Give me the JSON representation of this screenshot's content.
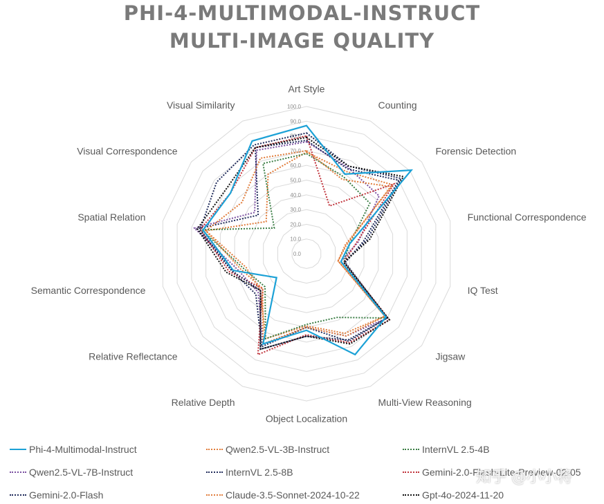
{
  "title": {
    "line1": "PHI-4-MULTIMODAL-INSTRUCT",
    "line2": "MULTI-IMAGE QUALITY"
  },
  "chart_data": {
    "type": "radar",
    "title": "PHI-4-MULTIMODAL-INSTRUCT MULTI-IMAGE QUALITY",
    "categories": [
      "Art Style",
      "Counting",
      "Forensic Detection",
      "Functional Correspondence",
      "IQ Test",
      "Jigsaw",
      "Multi-View Reasoning",
      "Object Localization",
      "Relative Depth",
      "Relative Reflectance",
      "Semantic Correspondence",
      "Spatial Relation",
      "Visual Correspondence",
      "Visual Similarity"
    ],
    "rlim": [
      0,
      100
    ],
    "ticks": [
      "0.0",
      "10.0",
      "20.0",
      "30.0",
      "40.0",
      "50.0",
      "60.0",
      "70.0",
      "80.0",
      "90.0",
      "100.0"
    ],
    "legend_position": "bottom",
    "series": [
      {
        "name": "Phi-4-Multimodal-Instruct",
        "color": "#1ba1d6",
        "style": "solid",
        "values": [
          87,
          60,
          91,
          30,
          24,
          69,
          76,
          52,
          68,
          26,
          51,
          72,
          66,
          85
        ]
      },
      {
        "name": "Qwen2.5-VL-3B-Instruct",
        "color": "#e07b39",
        "style": "dotted",
        "values": [
          69,
          62,
          75,
          27,
          22,
          68,
          60,
          49,
          64,
          40,
          42,
          70,
          35,
          60
        ]
      },
      {
        "name": "InternVL 2.5-4B",
        "color": "#3a7d44",
        "style": "dotted",
        "values": [
          68,
          58,
          55,
          30,
          26,
          70,
          48,
          48,
          64,
          36,
          44,
          73,
          28,
          68
        ]
      },
      {
        "name": "Qwen2.5-VL-7B-Instruct",
        "color": "#7a4fa0",
        "style": "dotted",
        "values": [
          76,
          65,
          63,
          36,
          24,
          70,
          62,
          50,
          68,
          42,
          48,
          78,
          45,
          78
        ]
      },
      {
        "name": "InternVL 2.5-8B",
        "color": "#1f2a5a",
        "style": "dotted",
        "values": [
          77,
          64,
          80,
          40,
          27,
          70,
          66,
          50,
          70,
          44,
          52,
          76,
          42,
          80
        ]
      },
      {
        "name": "Gemini-2.0-Flash-Lite-Preview-02-05",
        "color": "#c0323a",
        "style": "dotted",
        "values": [
          80,
          36,
          76,
          35,
          26,
          72,
          67,
          55,
          76,
          38,
          54,
          74,
          66,
          80
        ]
      },
      {
        "name": "Gemini-2.0-Flash",
        "color": "#1f2a5a",
        "style": "dotted",
        "values": [
          82,
          66,
          82,
          42,
          26,
          70,
          65,
          56,
          72,
          40,
          52,
          74,
          78,
          82
        ]
      },
      {
        "name": "Claude-3.5-Sonnet-2024-10-22",
        "color": "#e07b39",
        "style": "dotted",
        "values": [
          70,
          56,
          73,
          28,
          22,
          68,
          62,
          50,
          68,
          38,
          46,
          70,
          56,
          72
        ]
      },
      {
        "name": "Gpt-4o-2024-11-20",
        "color": "#111111",
        "style": "dotted",
        "values": [
          79,
          66,
          84,
          44,
          26,
          72,
          68,
          56,
          72,
          40,
          56,
          76,
          70,
          80
        ]
      }
    ]
  },
  "legend": [
    {
      "label": "Phi-4-Multimodal-Instruct",
      "color": "#1ba1d6",
      "style": "solid"
    },
    {
      "label": "Qwen2.5-VL-3B-Instruct",
      "color": "#e07b39",
      "style": "dotted"
    },
    {
      "label": "InternVL 2.5-4B",
      "color": "#3a7d44",
      "style": "dotted"
    },
    {
      "label": "Qwen2.5-VL-7B-Instruct",
      "color": "#7a4fa0",
      "style": "dotted"
    },
    {
      "label": "InternVL 2.5-8B",
      "color": "#1f2a5a",
      "style": "dotted"
    },
    {
      "label": "Gemini-2.0-Flash-Lite-Preview-02-05",
      "color": "#c0323a",
      "style": "dotted"
    },
    {
      "label": "Gemini-2.0-Flash",
      "color": "#1f2a5a",
      "style": "dotted"
    },
    {
      "label": "Claude-3.5-Sonnet-2024-10-22",
      "color": "#e07b39",
      "style": "dotted"
    },
    {
      "label": "Gpt-4o-2024-11-20",
      "color": "#111111",
      "style": "dotted"
    }
  ],
  "watermark": "知乎 @小小将"
}
